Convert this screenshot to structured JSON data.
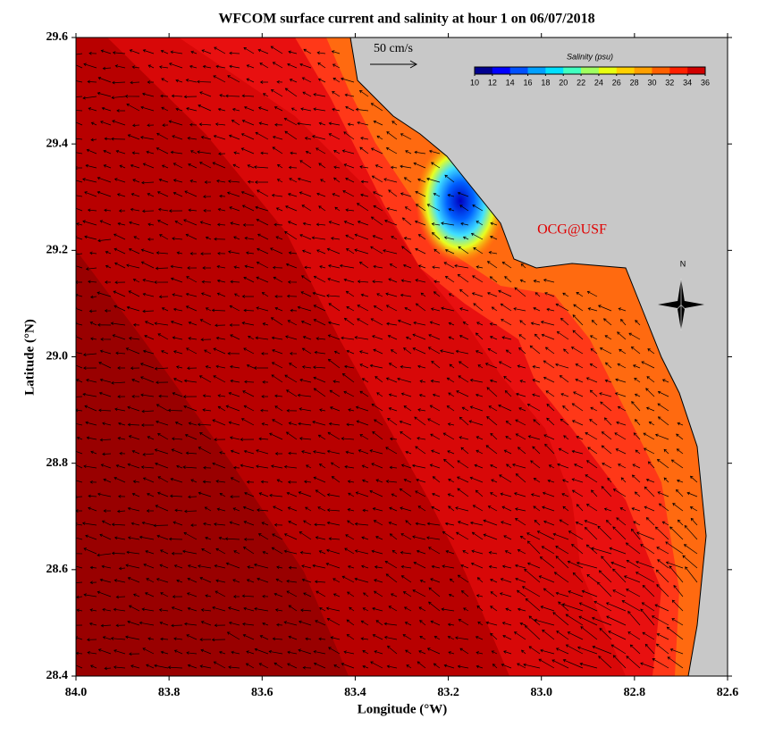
{
  "map": {
    "title": "WFCOM surface current and salinity at hour 1 on 06/07/2018",
    "xlabel": "Longitude (°W)",
    "ylabel": "Latitude (°N)",
    "xlim": [
      84.0,
      82.6
    ],
    "xticks": [
      {
        "value": 84,
        "label": "84.0"
      },
      83.8,
      83.6,
      83.4,
      83.2,
      {
        "value": 83,
        "label": "83.0"
      },
      82.8,
      82.6
    ],
    "ylim": [
      28.4,
      29.6
    ],
    "yticks": [
      28.4,
      28.6,
      28.8,
      {
        "value": 29,
        "label": "29.0"
      },
      29.2,
      29.4,
      29.6
    ],
    "scale_label": "50 cm/s",
    "credit": "OCG@USF",
    "compass_label": "N",
    "colorbar": {
      "title": "Salinity (psu)",
      "lim": [
        10,
        36
      ],
      "ticks": [
        10,
        12,
        14,
        16,
        18,
        20,
        22,
        24,
        26,
        28,
        30,
        32,
        34,
        36
      ],
      "colors": [
        "#00008f",
        "#0000ff",
        "#0050ff",
        "#00a0ff",
        "#00e0ff",
        "#40ffc0",
        "#a0ff60",
        "#e8ff10",
        "#ffd000",
        "#ffa000",
        "#ff6000",
        "#ff2000",
        "#d00000"
      ]
    }
  }
}
